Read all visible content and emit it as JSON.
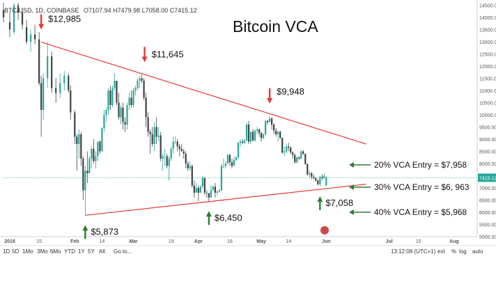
{
  "header": {
    "symbol": "BTC/USD, 1D, COINBASE",
    "ohlc": "O7107.94  H7479.98  L7058.00  C7415.12"
  },
  "bottom_bar": {
    "timeframes": [
      "1D",
      "5D",
      "1Mo",
      "3Mo",
      "6Mo",
      "YTD",
      "1Y",
      "5Y",
      "All",
      "Go to..."
    ],
    "clock": "13:12:08 (UTC+1)",
    "right_options": [
      "ext",
      "%",
      "log",
      "auto"
    ]
  },
  "colors": {
    "up": "#26a69a",
    "down": "#3d4043",
    "trend": "#e53935",
    "arrow_down": "#e53935",
    "arrow_up": "#2e7d32",
    "last_price": "#26a69a"
  },
  "chart_data": {
    "type": "candlestick",
    "title": "Bitcoin VCA",
    "xlabel": "",
    "ylabel": "",
    "ylim": [
      5000,
      14600
    ],
    "y_ticks": [
      "14500.00",
      "14000.00",
      "13500.00",
      "13000.00",
      "12500.00",
      "12000.00",
      "11500.00",
      "11000.00",
      "10500.00",
      "10000.00",
      "9500.00",
      "9000.00",
      "8500.00",
      "8000.00",
      "7500.00",
      "7000.00",
      "6500.00",
      "6000.00",
      "5500.00",
      "5000.00"
    ],
    "x_ticks": [
      "2018",
      "15",
      "Feb",
      "14",
      "Mar",
      "19",
      "Apr",
      "16",
      "May",
      "14",
      "Jun",
      "Jul",
      "15",
      "Aug"
    ],
    "last_price_label": "7415.12",
    "trendlines": [
      {
        "name": "upper",
        "from": {
          "x": "2018-01-16",
          "y": 12985
        },
        "to": {
          "x": "2018-06-20",
          "y": 8800
        }
      },
      {
        "name": "lower",
        "from": {
          "x": "2018-02-06",
          "y": 5873
        },
        "to": {
          "x": "2018-06-20",
          "y": 7150
        }
      }
    ],
    "annotations_down": [
      {
        "label": "$12,985",
        "x": "2018-01-16",
        "y": 12985
      },
      {
        "label": "$11,645",
        "x": "2018-03-05",
        "y": 11645
      },
      {
        "label": "$9,948",
        "x": "2018-05-05",
        "y": 9948
      }
    ],
    "annotations_up": [
      {
        "label": "$5,873",
        "x": "2018-02-06",
        "y": 5873
      },
      {
        "label": "$6,450",
        "x": "2018-04-06",
        "y": 6450
      },
      {
        "label": "$7,058",
        "x": "2018-05-29",
        "y": 7058
      }
    ],
    "vca_entries": [
      {
        "label": "20% VCA Entry = $7,958",
        "y": 7958
      },
      {
        "label": "30% VCA Entry = $6, 963",
        "y": 6963
      },
      {
        "label": "40% VCA Entry = $5,968",
        "y": 5968
      }
    ],
    "candles": [
      {
        "d": "2017-12-29",
        "o": 14300,
        "h": 14600,
        "l": 13800,
        "c": 14000
      },
      {
        "d": "2018-01-01",
        "o": 13800,
        "h": 14200,
        "l": 13200,
        "c": 13500
      },
      {
        "d": "2018-01-03",
        "o": 13400,
        "h": 14600,
        "l": 13300,
        "c": 14500
      },
      {
        "d": "2018-01-05",
        "o": 14500,
        "h": 14600,
        "l": 13900,
        "c": 14200
      },
      {
        "d": "2018-01-07",
        "o": 14200,
        "h": 14400,
        "l": 13500,
        "c": 13700
      },
      {
        "d": "2018-01-09",
        "o": 13600,
        "h": 13900,
        "l": 12900,
        "c": 13000
      },
      {
        "d": "2018-01-11",
        "o": 13000,
        "h": 13500,
        "l": 12600,
        "c": 13300
      },
      {
        "d": "2018-01-13",
        "o": 13300,
        "h": 13700,
        "l": 12900,
        "c": 13100
      },
      {
        "d": "2018-01-15",
        "o": 13100,
        "h": 13400,
        "l": 11200,
        "c": 11300
      },
      {
        "d": "2018-01-16",
        "o": 11300,
        "h": 11600,
        "l": 9100,
        "c": 10200
      },
      {
        "d": "2018-01-17",
        "o": 10200,
        "h": 11700,
        "l": 9800,
        "c": 11500
      },
      {
        "d": "2018-01-19",
        "o": 11500,
        "h": 12985,
        "l": 11100,
        "c": 12400
      },
      {
        "d": "2018-01-21",
        "o": 12400,
        "h": 12600,
        "l": 10900,
        "c": 11100
      },
      {
        "d": "2018-01-23",
        "o": 11100,
        "h": 11500,
        "l": 10500,
        "c": 10900
      },
      {
        "d": "2018-01-25",
        "o": 10900,
        "h": 11700,
        "l": 10700,
        "c": 11300
      },
      {
        "d": "2018-01-27",
        "o": 11300,
        "h": 11800,
        "l": 11000,
        "c": 11600
      },
      {
        "d": "2018-01-29",
        "o": 11600,
        "h": 11700,
        "l": 10900,
        "c": 11000
      },
      {
        "d": "2018-01-30",
        "o": 11000,
        "h": 11200,
        "l": 9800,
        "c": 10100
      },
      {
        "d": "2018-02-01",
        "o": 10100,
        "h": 10200,
        "l": 8800,
        "c": 9100
      },
      {
        "d": "2018-02-02",
        "o": 9100,
        "h": 9200,
        "l": 7700,
        "c": 8800
      },
      {
        "d": "2018-02-03",
        "o": 8800,
        "h": 9400,
        "l": 8200,
        "c": 9200
      },
      {
        "d": "2018-02-04",
        "o": 9200,
        "h": 9300,
        "l": 7900,
        "c": 8200
      },
      {
        "d": "2018-02-05",
        "o": 8200,
        "h": 8300,
        "l": 6500,
        "c": 6900
      },
      {
        "d": "2018-02-06",
        "o": 6900,
        "h": 7900,
        "l": 5873,
        "c": 7700
      },
      {
        "d": "2018-02-07",
        "o": 7700,
        "h": 8500,
        "l": 7200,
        "c": 7600
      },
      {
        "d": "2018-02-08",
        "o": 7600,
        "h": 8300,
        "l": 7600,
        "c": 8200
      },
      {
        "d": "2018-02-09",
        "o": 8200,
        "h": 8700,
        "l": 7800,
        "c": 8600
      },
      {
        "d": "2018-02-10",
        "o": 8600,
        "h": 9000,
        "l": 8000,
        "c": 8100
      },
      {
        "d": "2018-02-11",
        "o": 8100,
        "h": 8500,
        "l": 7800,
        "c": 8300
      },
      {
        "d": "2018-02-12",
        "o": 8300,
        "h": 8900,
        "l": 8100,
        "c": 8900
      },
      {
        "d": "2018-02-13",
        "o": 8900,
        "h": 8950,
        "l": 8400,
        "c": 8500
      },
      {
        "d": "2018-02-14",
        "o": 8500,
        "h": 9500,
        "l": 8500,
        "c": 9450
      },
      {
        "d": "2018-02-15",
        "o": 9450,
        "h": 10200,
        "l": 9300,
        "c": 10000
      },
      {
        "d": "2018-02-16",
        "o": 10000,
        "h": 10300,
        "l": 9700,
        "c": 10200
      },
      {
        "d": "2018-02-17",
        "o": 10200,
        "h": 11100,
        "l": 10000,
        "c": 11000
      },
      {
        "d": "2018-02-18",
        "o": 11000,
        "h": 11200,
        "l": 10200,
        "c": 10400
      },
      {
        "d": "2018-02-19",
        "o": 10400,
        "h": 11200,
        "l": 10300,
        "c": 11100
      },
      {
        "d": "2018-02-20",
        "o": 11100,
        "h": 11700,
        "l": 11000,
        "c": 11400
      },
      {
        "d": "2018-02-21",
        "o": 11400,
        "h": 11400,
        "l": 10400,
        "c": 10500
      },
      {
        "d": "2018-02-22",
        "o": 10500,
        "h": 10900,
        "l": 9800,
        "c": 9900
      },
      {
        "d": "2018-02-23",
        "o": 9900,
        "h": 10400,
        "l": 9600,
        "c": 10300
      },
      {
        "d": "2018-02-24",
        "o": 10300,
        "h": 10500,
        "l": 9400,
        "c": 9700
      },
      {
        "d": "2018-02-25",
        "o": 9700,
        "h": 9900,
        "l": 9300,
        "c": 9600
      },
      {
        "d": "2018-02-26",
        "o": 9600,
        "h": 10500,
        "l": 9400,
        "c": 10400
      },
      {
        "d": "2018-02-27",
        "o": 10400,
        "h": 10900,
        "l": 10200,
        "c": 10700
      },
      {
        "d": "2018-02-28",
        "o": 10700,
        "h": 11000,
        "l": 10300,
        "c": 10400
      },
      {
        "d": "2018-03-01",
        "o": 10400,
        "h": 11100,
        "l": 10300,
        "c": 11000
      },
      {
        "d": "2018-03-02",
        "o": 11000,
        "h": 11200,
        "l": 10800,
        "c": 11100
      },
      {
        "d": "2018-03-03",
        "o": 11100,
        "h": 11500,
        "l": 11000,
        "c": 11400
      },
      {
        "d": "2018-03-04",
        "o": 11400,
        "h": 11600,
        "l": 11100,
        "c": 11500
      },
      {
        "d": "2018-03-05",
        "o": 11500,
        "h": 11645,
        "l": 11300,
        "c": 11400
      },
      {
        "d": "2018-03-06",
        "o": 11400,
        "h": 11500,
        "l": 10600,
        "c": 10700
      },
      {
        "d": "2018-03-07",
        "o": 10700,
        "h": 10900,
        "l": 9500,
        "c": 9900
      },
      {
        "d": "2018-03-08",
        "o": 9900,
        "h": 10100,
        "l": 9100,
        "c": 9300
      },
      {
        "d": "2018-03-09",
        "o": 9300,
        "h": 9400,
        "l": 8400,
        "c": 9200
      },
      {
        "d": "2018-03-10",
        "o": 9200,
        "h": 9500,
        "l": 8700,
        "c": 8800
      },
      {
        "d": "2018-03-11",
        "o": 8800,
        "h": 9700,
        "l": 8500,
        "c": 9500
      },
      {
        "d": "2018-03-12",
        "o": 9500,
        "h": 9900,
        "l": 8800,
        "c": 9100
      },
      {
        "d": "2018-03-13",
        "o": 9100,
        "h": 9500,
        "l": 8900,
        "c": 9150
      },
      {
        "d": "2018-03-14",
        "o": 9150,
        "h": 9300,
        "l": 8100,
        "c": 8200
      },
      {
        "d": "2018-03-15",
        "o": 8200,
        "h": 8400,
        "l": 7700,
        "c": 8300
      },
      {
        "d": "2018-03-16",
        "o": 8300,
        "h": 8600,
        "l": 7900,
        "c": 8300
      },
      {
        "d": "2018-03-17",
        "o": 8300,
        "h": 8400,
        "l": 7800,
        "c": 7900
      },
      {
        "d": "2018-03-18",
        "o": 7900,
        "h": 8300,
        "l": 7300,
        "c": 8200
      },
      {
        "d": "2018-03-19",
        "o": 8200,
        "h": 8700,
        "l": 8100,
        "c": 8600
      },
      {
        "d": "2018-03-20",
        "o": 8600,
        "h": 9100,
        "l": 8400,
        "c": 8900
      },
      {
        "d": "2018-03-21",
        "o": 8900,
        "h": 9100,
        "l": 8800,
        "c": 8900
      },
      {
        "d": "2018-03-22",
        "o": 8900,
        "h": 9000,
        "l": 8500,
        "c": 8700
      },
      {
        "d": "2018-03-23",
        "o": 8700,
        "h": 8800,
        "l": 8300,
        "c": 8600
      },
      {
        "d": "2018-03-24",
        "o": 8600,
        "h": 8800,
        "l": 8500,
        "c": 8500
      },
      {
        "d": "2018-03-25",
        "o": 8500,
        "h": 8600,
        "l": 8200,
        "c": 8400
      },
      {
        "d": "2018-03-26",
        "o": 8400,
        "h": 8500,
        "l": 7800,
        "c": 8000
      },
      {
        "d": "2018-03-27",
        "o": 8000,
        "h": 8100,
        "l": 7700,
        "c": 7800
      },
      {
        "d": "2018-03-28",
        "o": 7800,
        "h": 8100,
        "l": 7700,
        "c": 7900
      },
      {
        "d": "2018-03-29",
        "o": 7900,
        "h": 7950,
        "l": 7000,
        "c": 7100
      },
      {
        "d": "2018-03-30",
        "o": 7100,
        "h": 7300,
        "l": 6600,
        "c": 6800
      },
      {
        "d": "2018-03-31",
        "o": 6800,
        "h": 7200,
        "l": 6800,
        "c": 7000
      },
      {
        "d": "2018-04-01",
        "o": 7000,
        "h": 7100,
        "l": 6450,
        "c": 6800
      },
      {
        "d": "2018-04-02",
        "o": 6800,
        "h": 7100,
        "l": 6800,
        "c": 7050
      },
      {
        "d": "2018-04-03",
        "o": 7050,
        "h": 7500,
        "l": 7000,
        "c": 7400
      },
      {
        "d": "2018-04-04",
        "o": 7400,
        "h": 7450,
        "l": 6700,
        "c": 6800
      },
      {
        "d": "2018-04-05",
        "o": 6800,
        "h": 6900,
        "l": 6600,
        "c": 6780
      },
      {
        "d": "2018-04-06",
        "o": 6780,
        "h": 6800,
        "l": 6450,
        "c": 6600
      },
      {
        "d": "2018-04-07",
        "o": 6600,
        "h": 7100,
        "l": 6600,
        "c": 6900
      },
      {
        "d": "2018-04-08",
        "o": 6900,
        "h": 7100,
        "l": 6900,
        "c": 7050
      },
      {
        "d": "2018-04-09",
        "o": 7050,
        "h": 7200,
        "l": 6600,
        "c": 6800
      },
      {
        "d": "2018-04-10",
        "o": 6800,
        "h": 6900,
        "l": 6700,
        "c": 6850
      },
      {
        "d": "2018-04-11",
        "o": 6850,
        "h": 6950,
        "l": 6800,
        "c": 6900
      },
      {
        "d": "2018-04-12",
        "o": 6900,
        "h": 8000,
        "l": 6850,
        "c": 7900
      },
      {
        "d": "2018-04-13",
        "o": 7900,
        "h": 8200,
        "l": 7800,
        "c": 7900
      },
      {
        "d": "2018-04-14",
        "o": 7900,
        "h": 8100,
        "l": 7800,
        "c": 8000
      },
      {
        "d": "2018-04-15",
        "o": 8000,
        "h": 8400,
        "l": 8000,
        "c": 8350
      },
      {
        "d": "2018-04-16",
        "o": 8350,
        "h": 8400,
        "l": 7900,
        "c": 8050
      },
      {
        "d": "2018-04-17",
        "o": 8050,
        "h": 8200,
        "l": 7800,
        "c": 7900
      },
      {
        "d": "2018-04-18",
        "o": 7900,
        "h": 8300,
        "l": 7900,
        "c": 8150
      },
      {
        "d": "2018-04-19",
        "o": 8150,
        "h": 8300,
        "l": 8100,
        "c": 8250
      },
      {
        "d": "2018-04-20",
        "o": 8250,
        "h": 8900,
        "l": 8200,
        "c": 8850
      },
      {
        "d": "2018-04-21",
        "o": 8850,
        "h": 9000,
        "l": 8700,
        "c": 8900
      },
      {
        "d": "2018-04-22",
        "o": 8900,
        "h": 9000,
        "l": 8800,
        "c": 8850
      },
      {
        "d": "2018-04-23",
        "o": 8850,
        "h": 9000,
        "l": 8800,
        "c": 8950
      },
      {
        "d": "2018-04-24",
        "o": 8950,
        "h": 9700,
        "l": 8900,
        "c": 9600
      },
      {
        "d": "2018-04-25",
        "o": 9600,
        "h": 9750,
        "l": 8800,
        "c": 8900
      },
      {
        "d": "2018-04-26",
        "o": 8900,
        "h": 9300,
        "l": 8800,
        "c": 9300
      },
      {
        "d": "2018-04-27",
        "o": 9300,
        "h": 9400,
        "l": 8900,
        "c": 8950
      },
      {
        "d": "2018-04-28",
        "o": 8950,
        "h": 9400,
        "l": 8900,
        "c": 9350
      },
      {
        "d": "2018-04-29",
        "o": 9350,
        "h": 9500,
        "l": 9200,
        "c": 9400
      },
      {
        "d": "2018-04-30",
        "o": 9400,
        "h": 9450,
        "l": 9100,
        "c": 9250
      },
      {
        "d": "2018-05-01",
        "o": 9250,
        "h": 9300,
        "l": 8900,
        "c": 9050
      },
      {
        "d": "2018-05-02",
        "o": 9050,
        "h": 9250,
        "l": 9000,
        "c": 9200
      },
      {
        "d": "2018-05-03",
        "o": 9200,
        "h": 9800,
        "l": 9150,
        "c": 9750
      },
      {
        "d": "2018-05-04",
        "o": 9750,
        "h": 9800,
        "l": 9600,
        "c": 9700
      },
      {
        "d": "2018-05-05",
        "o": 9700,
        "h": 9948,
        "l": 9700,
        "c": 9850
      },
      {
        "d": "2018-05-06",
        "o": 9850,
        "h": 9900,
        "l": 9400,
        "c": 9600
      },
      {
        "d": "2018-05-07",
        "o": 9600,
        "h": 9650,
        "l": 9200,
        "c": 9350
      },
      {
        "d": "2018-05-08",
        "o": 9350,
        "h": 9450,
        "l": 9100,
        "c": 9200
      },
      {
        "d": "2018-05-09",
        "o": 9200,
        "h": 9350,
        "l": 8900,
        "c": 9300
      },
      {
        "d": "2018-05-10",
        "o": 9300,
        "h": 9350,
        "l": 9000,
        "c": 9050
      },
      {
        "d": "2018-05-11",
        "o": 9050,
        "h": 9050,
        "l": 8400,
        "c": 8450
      },
      {
        "d": "2018-05-12",
        "o": 8450,
        "h": 8700,
        "l": 8300,
        "c": 8500
      },
      {
        "d": "2018-05-13",
        "o": 8500,
        "h": 8800,
        "l": 8400,
        "c": 8700
      },
      {
        "d": "2018-05-14",
        "o": 8700,
        "h": 8850,
        "l": 8500,
        "c": 8650
      },
      {
        "d": "2018-05-15",
        "o": 8650,
        "h": 8700,
        "l": 8400,
        "c": 8450
      },
      {
        "d": "2018-05-16",
        "o": 8450,
        "h": 8500,
        "l": 8200,
        "c": 8350
      },
      {
        "d": "2018-05-17",
        "o": 8350,
        "h": 8400,
        "l": 8000,
        "c": 8050
      },
      {
        "d": "2018-05-18",
        "o": 8050,
        "h": 8300,
        "l": 8000,
        "c": 8250
      },
      {
        "d": "2018-05-19",
        "o": 8250,
        "h": 8300,
        "l": 8150,
        "c": 8200
      },
      {
        "d": "2018-05-20",
        "o": 8200,
        "h": 8550,
        "l": 8200,
        "c": 8500
      },
      {
        "d": "2018-05-21",
        "o": 8500,
        "h": 8550,
        "l": 8350,
        "c": 8400
      },
      {
        "d": "2018-05-22",
        "o": 8400,
        "h": 8400,
        "l": 7950,
        "c": 7980
      },
      {
        "d": "2018-05-23",
        "o": 7980,
        "h": 8000,
        "l": 7500,
        "c": 7550
      },
      {
        "d": "2018-05-24",
        "o": 7550,
        "h": 7700,
        "l": 7400,
        "c": 7600
      },
      {
        "d": "2018-05-25",
        "o": 7600,
        "h": 7650,
        "l": 7350,
        "c": 7450
      },
      {
        "d": "2018-05-26",
        "o": 7450,
        "h": 7550,
        "l": 7350,
        "c": 7400
      },
      {
        "d": "2018-05-27",
        "o": 7400,
        "h": 7450,
        "l": 7250,
        "c": 7300
      },
      {
        "d": "2018-05-28",
        "o": 7300,
        "h": 7350,
        "l": 7100,
        "c": 7150
      },
      {
        "d": "2018-05-29",
        "o": 7150,
        "h": 7500,
        "l": 7058,
        "c": 7450
      },
      {
        "d": "2018-05-30",
        "o": 7450,
        "h": 7550,
        "l": 7300,
        "c": 7400
      },
      {
        "d": "2018-05-31",
        "o": 7400,
        "h": 7600,
        "l": 7350,
        "c": 7500
      },
      {
        "d": "2018-06-01",
        "o": 7107.94,
        "h": 7479.98,
        "l": 7058,
        "c": 7415.12
      }
    ]
  }
}
